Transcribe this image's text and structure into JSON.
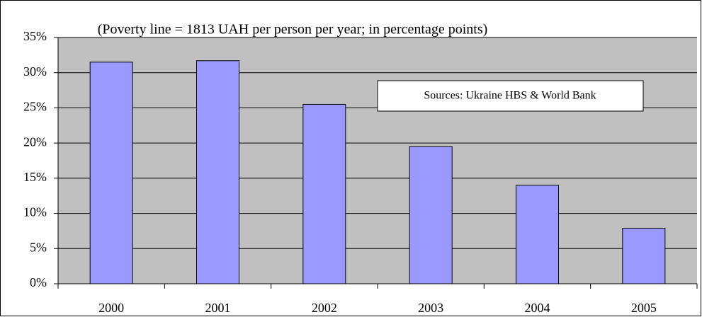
{
  "chart_data": {
    "type": "bar",
    "title": "(Poverty line = 1813 UAH per person per year; in percentage points)",
    "annotation": "Sources: Ukraine HBS & World Bank",
    "categories": [
      "2000",
      "2001",
      "2002",
      "2003",
      "2004",
      "2005"
    ],
    "values": [
      31.5,
      31.7,
      25.5,
      19.5,
      14,
      7.9
    ],
    "color": "#9999ff",
    "ylim": [
      0,
      35
    ],
    "yticks": [
      {
        "value": 0,
        "label": "0%"
      },
      {
        "value": 5,
        "label": "5%"
      },
      {
        "value": 10,
        "label": "10%"
      },
      {
        "value": 15,
        "label": "15%"
      },
      {
        "value": 20,
        "label": "20%"
      },
      {
        "value": 25,
        "label": "25%"
      },
      {
        "value": 30,
        "label": "30%"
      },
      {
        "value": 35,
        "label": "35%"
      }
    ],
    "grid": true
  }
}
